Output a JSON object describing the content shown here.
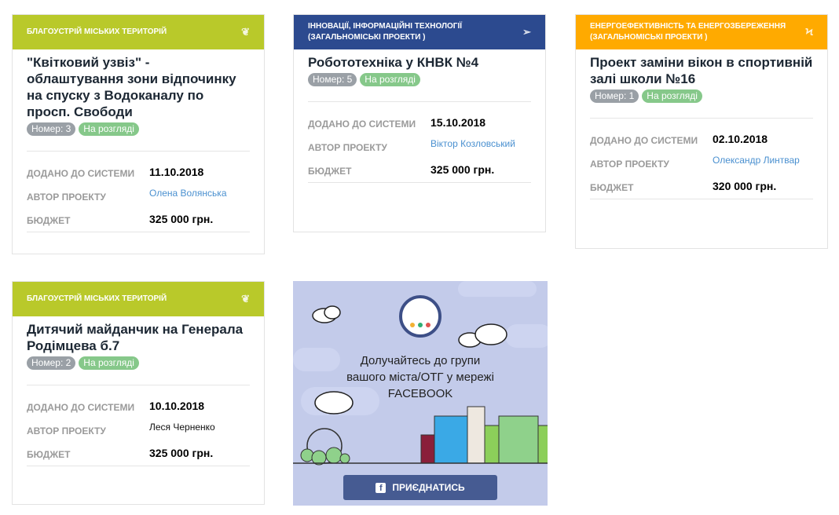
{
  "colors": {
    "green": "#b9c92a",
    "blue": "#2c4a8f",
    "orange": "#ffaa00",
    "status": "#86c88a",
    "number": "#9aa0a6",
    "link": "#4a90d0",
    "facebook": "#465b92"
  },
  "labels": {
    "added": "ДОДАНО ДО СИСТЕМИ",
    "author": "АВТОР ПРОЕКТУ",
    "budget": "БЮДЖЕТ"
  },
  "projects": [
    {
      "category": "Благоустрій міських територій",
      "category_icon": "leaf-icon",
      "title": "\"Квітковий узвіз\" - облаштування зони відпочинку на спуску з Водоканалу по просп. Свободи",
      "number": "Номер: 3",
      "status": "На розгляді",
      "date": "11.10.2018",
      "author": "Олена Волянська",
      "budget": "325 000 грн."
    },
    {
      "category": "Інновації, інформаційні технології (загальноміські проекти )",
      "category_icon": "paper-plane-icon",
      "title": "Робототехніка у КНВК №4",
      "number": "Номер: 5",
      "status": "На розгляді",
      "date": "15.10.2018",
      "author": "Віктор Козловський",
      "budget": "325 000 грн."
    },
    {
      "category": "Енергоефективність та енергозбереження (загальноміські проекти )",
      "category_icon": "lightning-icon",
      "title": "Проект заміни вікон в спортивній залі школи №16",
      "number": "Номер: 1",
      "status": "На розгляді",
      "date": "02.10.2018",
      "author": "Олександр Линтвар",
      "budget": "320 000 грн."
    },
    {
      "category": "Благоустрій міських територій",
      "category_icon": "leaf-icon",
      "title": "Дитячий майданчик на Генерала Родімцева б.7",
      "number": "Номер: 2",
      "status": "На розгляді",
      "date": "10.10.2018",
      "author": "Леся Черненко",
      "budget": "325 000 грн."
    }
  ],
  "banner": {
    "line1": "Долучайтесь до групи",
    "line2": "вашого міста/ОТГ у мережі",
    "line3": "FACEBOOK",
    "button": "ПРИЄДНАТИСЬ",
    "button_icon": "facebook-icon"
  }
}
